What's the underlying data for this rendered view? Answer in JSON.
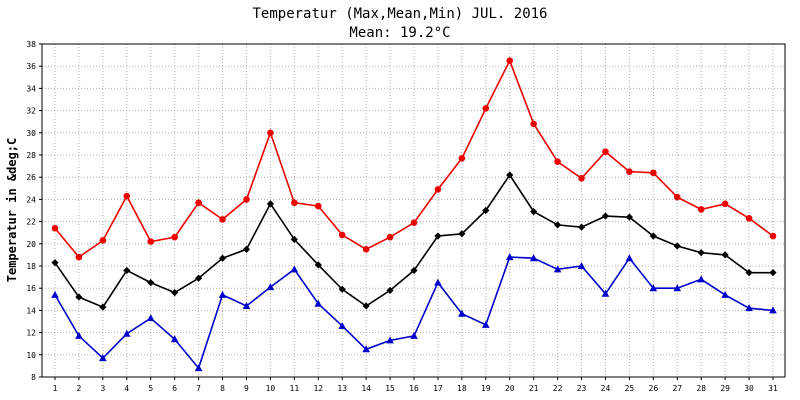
{
  "chart_data": {
    "type": "line",
    "title": "Temperatur (Max,Mean,Min) JUL. 2016",
    "subtitle": "Mean: 19.2°C",
    "xlabel": "",
    "ylabel": "Temperatur in &deg;C",
    "ylim": [
      8,
      38
    ],
    "yticks": [
      "8",
      "10",
      "12",
      "14",
      "16",
      "18",
      "20",
      "22",
      "24",
      "26",
      "28",
      "30",
      "32",
      "34",
      "36",
      "38"
    ],
    "categories": [
      "1",
      "2",
      "3",
      "4",
      "5",
      "6",
      "7",
      "8",
      "9",
      "10",
      "11",
      "12",
      "13",
      "14",
      "15",
      "16",
      "17",
      "18",
      "19",
      "20",
      "21",
      "22",
      "23",
      "24",
      "25",
      "26",
      "27",
      "28",
      "29",
      "30",
      "31"
    ],
    "grid": true,
    "series": [
      {
        "color": "#ee0000",
        "marker": "circle",
        "values": [
          21.4,
          18.8,
          20.3,
          24.3,
          20.2,
          20.6,
          23.7,
          22.2,
          24.0,
          30.0,
          23.7,
          23.4,
          20.8,
          19.5,
          20.6,
          21.9,
          24.9,
          27.7,
          32.2,
          36.5,
          30.8,
          27.4,
          25.9,
          28.3,
          26.5,
          26.4,
          24.2,
          23.1,
          23.6,
          22.3,
          20.7
        ]
      },
      {
        "color": "#000000",
        "marker": "diamond",
        "values": [
          18.3,
          15.2,
          14.3,
          17.6,
          16.5,
          15.6,
          16.9,
          18.7,
          19.5,
          23.6,
          20.4,
          18.1,
          15.9,
          14.4,
          15.8,
          17.6,
          20.7,
          20.9,
          23.0,
          26.2,
          22.9,
          21.7,
          21.5,
          22.5,
          22.4,
          20.7,
          19.8,
          19.2,
          19.0,
          17.4,
          17.4
        ]
      },
      {
        "color": "#0000cc",
        "marker": "triangle",
        "values": [
          15.4,
          11.7,
          9.7,
          11.9,
          13.3,
          11.4,
          8.8,
          15.4,
          14.4,
          16.1,
          17.7,
          14.6,
          12.6,
          10.5,
          11.3,
          11.7,
          16.5,
          13.7,
          12.7,
          18.8,
          18.7,
          17.7,
          18.0,
          15.5,
          18.7,
          16.0,
          16.0,
          16.8,
          15.4,
          14.2,
          14.0
        ]
      }
    ]
  }
}
